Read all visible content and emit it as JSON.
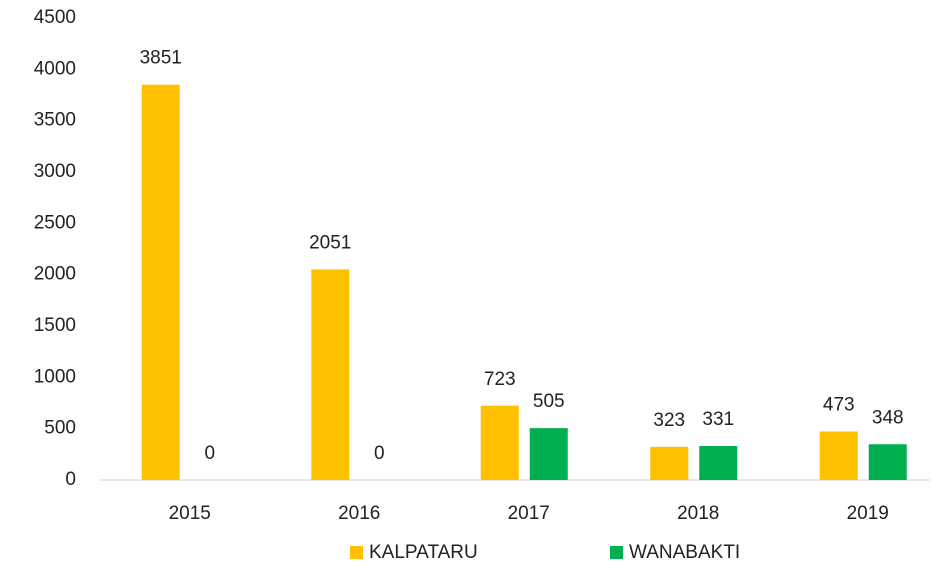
{
  "chart_data": {
    "type": "bar",
    "categories": [
      "2015",
      "2016",
      "2017",
      "2018",
      "2019"
    ],
    "series": [
      {
        "name": "KALPATARU",
        "color": "#ffc000",
        "values": [
          3851,
          2051,
          723,
          323,
          473
        ]
      },
      {
        "name": "WANABAKTI",
        "color": "#00b050",
        "values": [
          0,
          0,
          505,
          331,
          348
        ]
      }
    ],
    "ylim": [
      0,
      4500
    ],
    "yticks": [
      0,
      500,
      1000,
      1500,
      2000,
      2500,
      3000,
      3500,
      4000,
      4500
    ],
    "grid": false,
    "legend": "bottom"
  }
}
